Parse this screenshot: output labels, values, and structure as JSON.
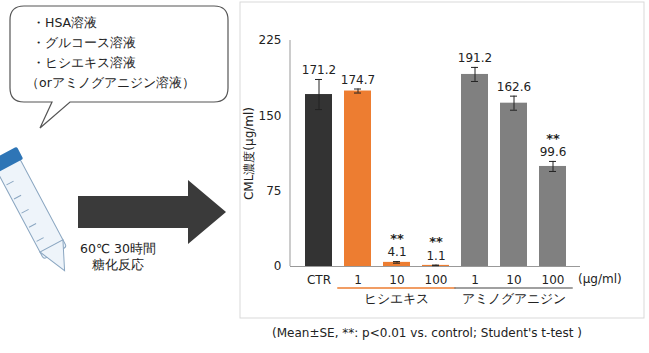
{
  "chart_data": {
    "type": "bar",
    "categories": [
      "CTR",
      "1",
      "10",
      "100",
      "1",
      "10",
      "100"
    ],
    "values": [
      171.2,
      174.7,
      4.1,
      1.1,
      191.2,
      162.6,
      99.6
    ],
    "errors": [
      15,
      2,
      0.8,
      0.3,
      7,
      7,
      5
    ],
    "colors": [
      "#333333",
      "#ED7D31",
      "#ED7D31",
      "#ED7D31",
      "#808080",
      "#808080",
      "#808080"
    ],
    "data_labels": true,
    "significance": [
      null,
      null,
      "**",
      "**",
      null,
      null,
      "**"
    ],
    "groups": [
      {
        "label": "ヒシエキス",
        "from": 1,
        "to": 3,
        "color": "#ED7D31"
      },
      {
        "label": "アミノグアニジン",
        "from": 4,
        "to": 6,
        "color": "#808080"
      }
    ],
    "y_label": "CML濃度(μg/ml)",
    "x_unit": "(μg/ml)",
    "ylim": [
      0,
      225
    ],
    "yticks": [
      0,
      75,
      150,
      225
    ],
    "grid": false,
    "footnote": "(Mean±SE, **: p<0.01 vs. control; Student's t-test )",
    "diagram": {
      "bubble_lines": [
        "・HSA溶液",
        "・グルコース溶液",
        "・ヒシエキス溶液",
        "（orアミノグアニジン溶液）"
      ],
      "arrow_label": [
        "60℃ 30時間",
        "糖化反応"
      ]
    }
  }
}
